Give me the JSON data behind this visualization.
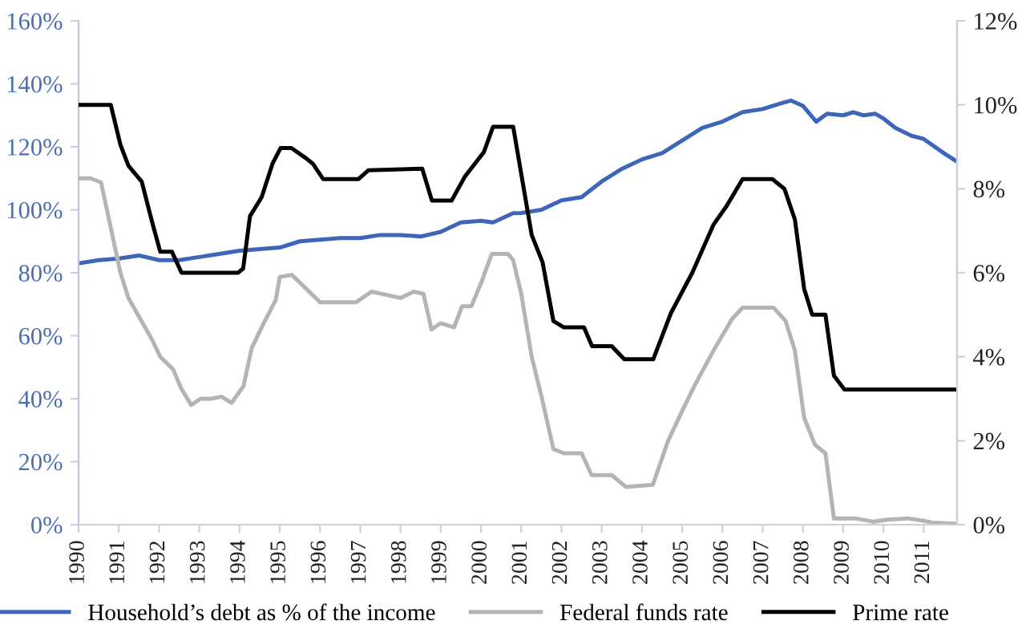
{
  "chart_data": {
    "type": "line",
    "legend": "bottom",
    "grid": false,
    "xlim": [
      1990,
      2011.83
    ],
    "xticks": [
      1990,
      1991,
      1992,
      1993,
      1994,
      1995,
      1996,
      1997,
      1998,
      1999,
      2000,
      2001,
      2002,
      2003,
      2004,
      2005,
      2006,
      2007,
      2008,
      2009,
      2010,
      2011
    ],
    "ylim": [
      0,
      160
    ],
    "yticks": [
      {
        "value": 0,
        "label": "0%"
      },
      {
        "value": 20,
        "label": "20%"
      },
      {
        "value": 40,
        "label": "40%"
      },
      {
        "value": 60,
        "label": "60%"
      },
      {
        "value": 80,
        "label": "80%"
      },
      {
        "value": 100,
        "label": "100%"
      },
      {
        "value": 120,
        "label": "120%"
      },
      {
        "value": 140,
        "label": "140%"
      },
      {
        "value": 160,
        "label": "160%"
      }
    ],
    "y2lim": [
      0,
      12
    ],
    "y2ticks": [
      {
        "value": 0,
        "label": "0%"
      },
      {
        "value": 2,
        "label": "2%"
      },
      {
        "value": 4,
        "label": "4%"
      },
      {
        "value": 6,
        "label": "6%"
      },
      {
        "value": 8,
        "label": "8%"
      },
      {
        "value": 10,
        "label": "10%"
      },
      {
        "value": 12,
        "label": "12%"
      }
    ],
    "series": [
      {
        "name": "Household’s debt as % of the income",
        "color": "#3d66b8",
        "x": [
          1990,
          1990.5,
          1991,
          1991.5,
          1992,
          1992.5,
          1993,
          1993.5,
          1994,
          1994.5,
          1995,
          1995.5,
          1996,
          1996.5,
          1997,
          1997.5,
          1998,
          1998.5,
          1999,
          1999.5,
          2000,
          2000.3,
          2000.8,
          2001,
          2001.5,
          2002,
          2002.5,
          2003,
          2003.5,
          2004,
          2004.5,
          2005,
          2005.5,
          2006,
          2006.5,
          2007,
          2007.5,
          2007.7,
          2008,
          2008.33,
          2008.6,
          2009,
          2009.25,
          2009.5,
          2009.8,
          2010,
          2010.3,
          2010.7,
          2011,
          2011.5,
          2011.83
        ],
        "values": [
          83,
          84,
          84.5,
          85.5,
          84,
          84,
          85,
          86,
          87,
          87.5,
          88,
          90,
          90.5,
          91,
          91,
          92,
          92,
          91.5,
          93,
          96,
          96.5,
          96,
          98.9,
          99,
          100,
          103,
          104,
          109,
          113,
          116,
          118,
          122,
          126,
          128,
          131,
          132,
          134,
          134.7,
          133,
          128,
          130.5,
          130,
          131,
          130,
          130.5,
          129,
          126,
          123.5,
          122.5,
          118,
          115.3
        ]
      },
      {
        "name": "Federal funds rate",
        "color": "#b4b4b4",
        "axis": "y2",
        "x": [
          1990,
          1990.3,
          1990.56,
          1991.04,
          1991.24,
          1991.83,
          1992.03,
          1992.35,
          1992.55,
          1992.8,
          1993.03,
          1993.3,
          1993.55,
          1993.8,
          1994.1,
          1994.3,
          1994.6,
          1994.9,
          1995.0,
          1995.3,
          1996.0,
          1996.9,
          1997.28,
          1998.0,
          1998.33,
          1998.57,
          1998.77,
          1999.0,
          1999.33,
          1999.53,
          1999.76,
          2000.0,
          2000.27,
          2000.67,
          2000.8,
          2001.0,
          2001.26,
          2001.5,
          2001.8,
          2002.06,
          2002.5,
          2002.75,
          2003.25,
          2003.6,
          2004.27,
          2004.65,
          2005.02,
          2005.3,
          2005.78,
          2006.24,
          2006.5,
          2007.27,
          2007.57,
          2007.8,
          2008.03,
          2008.3,
          2008.56,
          2008.77,
          2009.3,
          2009.76,
          2010.1,
          2010.6,
          2010.96,
          2011.22,
          2011.82
        ],
        "values": [
          8.25,
          8.25,
          8.15,
          6.0,
          5.4,
          4.4,
          4.0,
          3.7,
          3.25,
          2.85,
          3.0,
          3.0,
          3.05,
          2.9,
          3.3,
          4.2,
          4.8,
          5.35,
          5.9,
          5.95,
          5.3,
          5.3,
          5.55,
          5.4,
          5.55,
          5.5,
          4.65,
          4.8,
          4.7,
          5.2,
          5.2,
          5.75,
          6.45,
          6.45,
          6.3,
          5.5,
          4.0,
          3.07,
          1.8,
          1.7,
          1.7,
          1.18,
          1.18,
          0.9,
          0.95,
          2.0,
          2.75,
          3.3,
          4.15,
          4.9,
          5.17,
          5.17,
          4.85,
          4.15,
          2.55,
          1.9,
          1.7,
          0.15,
          0.15,
          0.07,
          0.12,
          0.15,
          0.1,
          0.05,
          0.02
        ]
      },
      {
        "name": "Prime rate",
        "color": "#000000",
        "axis": "y2",
        "x": [
          1990,
          1990.8,
          1991.04,
          1991.24,
          1991.57,
          1991.83,
          1992.03,
          1992.32,
          1992.56,
          1993.96,
          1994.09,
          1994.26,
          1994.55,
          1994.82,
          1995.02,
          1995.29,
          1995.62,
          1995.82,
          1996.08,
          1996.95,
          1997.2,
          1998.54,
          1998.78,
          1999.27,
          1999.6,
          2000.07,
          2000.3,
          2000.8,
          2001.26,
          2001.53,
          2001.8,
          2002.06,
          2002.56,
          2002.76,
          2003.25,
          2003.56,
          2004.28,
          2004.72,
          2005.25,
          2005.78,
          2006.11,
          2006.5,
          2007.24,
          2007.54,
          2007.8,
          2008.03,
          2008.23,
          2008.56,
          2008.77,
          2009.03,
          2011.82
        ],
        "values": [
          10,
          10,
          9.05,
          8.55,
          8.17,
          7.2,
          6.5,
          6.5,
          6.0,
          6.0,
          6.1,
          7.35,
          7.8,
          8.6,
          8.97,
          8.97,
          8.75,
          8.6,
          8.23,
          8.23,
          8.44,
          8.48,
          7.72,
          7.72,
          8.29,
          8.87,
          9.48,
          9.48,
          6.9,
          6.25,
          4.85,
          4.7,
          4.7,
          4.25,
          4.25,
          3.94,
          3.94,
          5.04,
          6.0,
          7.15,
          7.6,
          8.23,
          8.23,
          8.0,
          7.27,
          5.62,
          5.0,
          5.0,
          3.55,
          3.22,
          3.22
        ]
      }
    ]
  }
}
